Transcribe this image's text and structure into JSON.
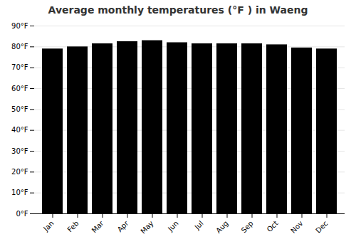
{
  "chart_data": {
    "type": "bar",
    "title": "Average monthly temperatures (°F ) in Waeng",
    "categories": [
      "Jan",
      "Feb",
      "Mar",
      "Apr",
      "May",
      "Jun",
      "Jul",
      "Aug",
      "Sep",
      "Oct",
      "Nov",
      "Dec"
    ],
    "values": [
      79.0,
      80.0,
      81.5,
      82.5,
      83.0,
      82.0,
      81.5,
      81.5,
      81.5,
      81.0,
      79.5,
      79.0
    ],
    "ylim": [
      0,
      90
    ],
    "yticks": [
      {
        "value": 0,
        "label": "0°F"
      },
      {
        "value": 10,
        "label": "10°F"
      },
      {
        "value": 20,
        "label": "20°F"
      },
      {
        "value": 30,
        "label": "30°F"
      },
      {
        "value": 40,
        "label": "40°F"
      },
      {
        "value": 50,
        "label": "50°F"
      },
      {
        "value": 60,
        "label": "60°F"
      },
      {
        "value": 70,
        "label": "70°F"
      },
      {
        "value": 80,
        "label": "80°F"
      },
      {
        "value": 90,
        "label": "90°F"
      }
    ],
    "grid": true
  }
}
